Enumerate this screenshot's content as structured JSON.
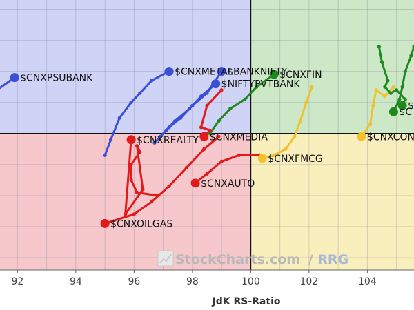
{
  "chart_data": {
    "type": "scatter",
    "title": "",
    "xlabel": "JdK RS-Ratio",
    "ylabel": "",
    "xlim": [
      91.4,
      105.6
    ],
    "ylim": [
      95.6,
      104.3
    ],
    "grid": true,
    "x_ticks": [
      "92",
      "94",
      "96",
      "98",
      "100",
      "102",
      "104"
    ],
    "quadrants": {
      "center_x": 100,
      "center_y": 100,
      "colors": {
        "improving": "#cfd3f6",
        "leading": "#cde8c6",
        "weakening": "#f8efbc",
        "lagging": "#f6c8cc"
      }
    },
    "watermark": {
      "brand": "StockCharts.com",
      "product": "RRG"
    },
    "series": [
      {
        "name": "$CNXPSUBANK",
        "color": "#3b4fd6",
        "x": [
          91.0,
          91.9
        ],
        "y": [
          101.2,
          101.8
        ]
      },
      {
        "name": "$CNXMETAL",
        "color": "#3b4fd6",
        "x": [
          95.0,
          95.2,
          95.5,
          95.9,
          96.2,
          96.6,
          97.2
        ],
        "y": [
          99.3,
          99.8,
          100.5,
          101.0,
          101.3,
          101.7,
          102.0
        ]
      },
      {
        "name": "$BANKNIFTY",
        "color": "#3b4fd6",
        "x": [
          96.9,
          97.2,
          97.6,
          98.0,
          98.5,
          99.0
        ],
        "y": [
          99.9,
          100.2,
          100.5,
          100.9,
          101.3,
          102.0
        ]
      },
      {
        "name": "$NIFTYPVTBANK",
        "color": "#3b4fd6",
        "x": [
          96.7,
          97.1,
          97.4,
          97.9,
          98.3,
          98.8
        ],
        "y": [
          99.7,
          100.1,
          100.4,
          100.8,
          101.2,
          101.6
        ]
      },
      {
        "name": "$CNXFIN",
        "color": "#1e8a1e",
        "x": [
          98.6,
          98.9,
          99.3,
          99.8,
          100.2,
          100.8
        ],
        "y": [
          100.0,
          100.4,
          100.8,
          101.1,
          101.5,
          101.9
        ]
      },
      {
        "name": "$CNXMEDIA",
        "color": "#e31a1c",
        "x": [
          99.0,
          98.5,
          98.3,
          98.6,
          98.4
        ],
        "y": [
          101.4,
          100.9,
          100.2,
          100.1,
          99.9
        ]
      },
      {
        "name": "$CNXREALTY",
        "color": "#e31a1c",
        "x": [
          96.8,
          96.1,
          95.9,
          95.9,
          96.2,
          96.1,
          96.3,
          95.7,
          95.9
        ],
        "y": [
          98.0,
          98.1,
          98.5,
          99.0,
          99.4,
          99.6,
          98.2,
          97.4,
          99.8
        ]
      },
      {
        "name": "$CNXAUTO",
        "color": "#e31a1c",
        "x": [
          100.3,
          99.6,
          99.0,
          98.5,
          98.1
        ],
        "y": [
          99.3,
          99.3,
          99.1,
          98.7,
          98.4
        ]
      },
      {
        "name": "$CNXOILGAS",
        "color": "#e31a1c",
        "x": [
          98.9,
          98.4,
          97.8,
          97.2,
          96.6,
          96.0,
          95.0
        ],
        "y": [
          99.9,
          99.5,
          98.9,
          98.3,
          97.8,
          97.4,
          97.1
        ]
      },
      {
        "name": "$CNXFMCG",
        "color": "#f2c12e",
        "x": [
          102.1,
          101.9,
          101.7,
          101.5,
          101.2,
          100.8,
          100.4
        ],
        "y": [
          101.5,
          101.0,
          100.4,
          99.9,
          99.5,
          99.3,
          99.2
        ]
      },
      {
        "name": "$CNXCONSUM",
        "color": "#f2c12e",
        "x": [
          104.9,
          104.6,
          104.3,
          104.2,
          104.1,
          103.8
        ],
        "y": [
          101.5,
          101.2,
          101.4,
          100.9,
          100.3,
          99.9
        ]
      },
      {
        "name": "$CNXPHARMA",
        "color": "#1e8a1e",
        "x": [
          104.4,
          104.5,
          104.7,
          104.6,
          104.8,
          105.0,
          105.3,
          105.2
        ],
        "y": [
          102.8,
          102.3,
          101.7,
          101.5,
          101.3,
          101.4,
          101.1,
          100.9
        ]
      },
      {
        "name": "$CNXIT",
        "color": "#1e8a1e",
        "x": [
          105.6,
          105.5,
          105.3,
          105.2,
          105.1,
          104.9
        ],
        "y": [
          102.8,
          102.5,
          102.0,
          101.5,
          101.1,
          100.7
        ]
      }
    ],
    "visible_labels": [
      {
        "series": 0,
        "text": "$CNXPSUBANK"
      },
      {
        "series": 1,
        "text": "$CNXMETAL"
      },
      {
        "series": 2,
        "text": "$BANKNIFTY"
      },
      {
        "series": 3,
        "text": "$NIFTYPVTBANK"
      },
      {
        "series": 4,
        "text": "$CNXFIN"
      },
      {
        "series": 5,
        "text": "$CNXMEDIA"
      },
      {
        "series": 6,
        "text": "$CNXREALTY"
      },
      {
        "series": 7,
        "text": "$CNXAUTO"
      },
      {
        "series": 8,
        "text": "$CNXOILGAS"
      },
      {
        "series": 9,
        "text": "$CNXFMCG"
      },
      {
        "series": 10,
        "text": "$CNXCONSUM"
      },
      {
        "series": 11,
        "text": "$C"
      },
      {
        "series": 12,
        "text": "$C"
      }
    ]
  }
}
